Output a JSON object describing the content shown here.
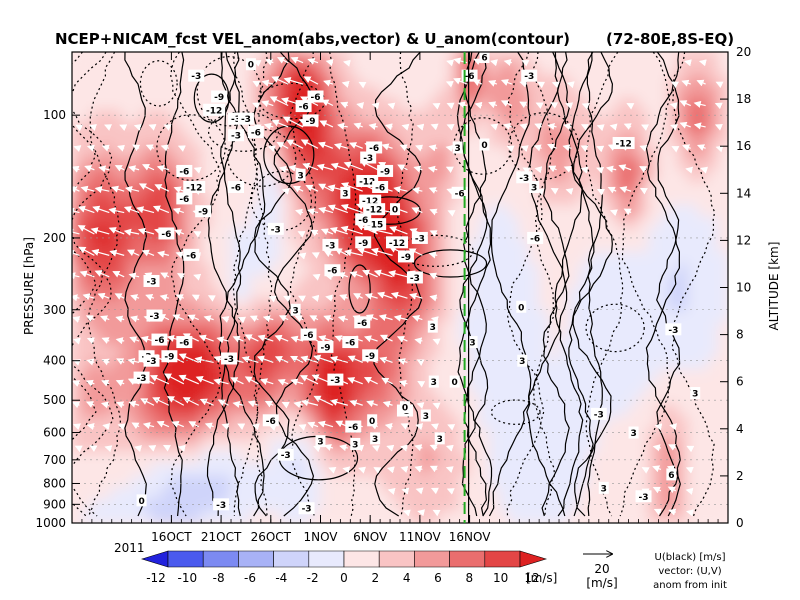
{
  "chart_data": {
    "type": "heatmap",
    "title": "NCEP+NICAM_fcst VEL_anom(abs,vector) & U_anom(contour)",
    "region": "(72-80E,8S-EQ)",
    "ylabel": "PRESSURE [hPa]",
    "y2label": "ALTITUDE [km]",
    "x_ticks": [
      "16OCT",
      "21OCT",
      "26OCT",
      "1NOV",
      "6NOV",
      "11NOV",
      "16NOV"
    ],
    "x_year": "2011",
    "x_range_days": [
      0,
      66
    ],
    "x_tick_days": [
      10,
      15,
      20,
      25,
      30,
      35,
      40
    ],
    "y_ticks_pressure": [
      100,
      200,
      300,
      400,
      500,
      600,
      700,
      800,
      900,
      1000
    ],
    "y_range_pressure": [
      70,
      1000
    ],
    "y_log_scale": true,
    "y2_ticks_altitude": [
      0,
      2,
      4,
      6,
      8,
      10,
      12,
      14,
      16,
      18,
      20
    ],
    "y2_range_km": [
      0,
      20
    ],
    "colorbar": {
      "levels": [
        -12,
        -10,
        -8,
        -6,
        -4,
        -2,
        0,
        2,
        4,
        6,
        8,
        10,
        12
      ],
      "unit": "[m/s]",
      "colors": [
        "#2222dd",
        "#4a5aee",
        "#7c8af2",
        "#a8b2f6",
        "#cfd4fa",
        "#e8eafd",
        "#fde6e6",
        "#f9c4c4",
        "#f29a9a",
        "#ea6e6e",
        "#e34646",
        "#dd2222"
      ]
    },
    "forecast_init_day": 39.5,
    "forecast_init_label": "init",
    "vector_reference": {
      "value": "20",
      "unit": "[m/s]"
    },
    "legend_text": [
      "U(black) [m/s]",
      "vector: (U,V)",
      "anom from init"
    ],
    "contour_labels": [
      {
        "t": "-3",
        "d": 12.5,
        "p": 80
      },
      {
        "t": "-9",
        "d": 14.8,
        "p": 90
      },
      {
        "t": "-12",
        "d": 14.3,
        "p": 97
      },
      {
        "t": "-3",
        "d": 16.5,
        "p": 102
      },
      {
        "t": "-6",
        "d": 11.3,
        "p": 137
      },
      {
        "t": "-6",
        "d": 11.3,
        "p": 160
      },
      {
        "t": "-12",
        "d": 12.3,
        "p": 150
      },
      {
        "t": "-9",
        "d": 13.2,
        "p": 172
      },
      {
        "t": "-6",
        "d": 12.0,
        "p": 220
      },
      {
        "t": "-6",
        "d": 9.5,
        "p": 195
      },
      {
        "t": "-3",
        "d": 8.0,
        "p": 255
      },
      {
        "t": "-3",
        "d": 8.3,
        "p": 310
      },
      {
        "t": "-6",
        "d": 8.8,
        "p": 355
      },
      {
        "t": "-6",
        "d": 11.3,
        "p": 360
      },
      {
        "t": "-9",
        "d": 9.8,
        "p": 390
      },
      {
        "t": "-3",
        "d": 7.5,
        "p": 390
      },
      {
        "t": "-3",
        "d": 15.8,
        "p": 395
      },
      {
        "t": "-6",
        "d": 23.8,
        "p": 345
      },
      {
        "t": "-9",
        "d": 25.5,
        "p": 370
      },
      {
        "t": "-6",
        "d": 26.2,
        "p": 240
      },
      {
        "t": "-6",
        "d": 28.0,
        "p": 360
      },
      {
        "t": "-6",
        "d": 29.2,
        "p": 322
      },
      {
        "t": "-3",
        "d": 26.5,
        "p": 445
      },
      {
        "t": "-3",
        "d": 20.5,
        "p": 190
      },
      {
        "t": "-6",
        "d": 16.5,
        "p": 150
      },
      {
        "t": "-6",
        "d": 18.5,
        "p": 110
      },
      {
        "t": "-3",
        "d": 16.5,
        "p": 112
      },
      {
        "t": "-3",
        "d": 17.5,
        "p": 102
      },
      {
        "t": "-6",
        "d": 23.3,
        "p": 95
      },
      {
        "t": "-9",
        "d": 24.0,
        "p": 103
      },
      {
        "t": "-6",
        "d": 24.5,
        "p": 90
      },
      {
        "t": "-6",
        "d": 30.4,
        "p": 120
      },
      {
        "t": "-3",
        "d": 29.8,
        "p": 127
      },
      {
        "t": "-12",
        "d": 29.7,
        "p": 145
      },
      {
        "t": "-6",
        "d": 31.0,
        "p": 150
      },
      {
        "t": "-9",
        "d": 31.5,
        "p": 137
      },
      {
        "t": "-12",
        "d": 30.0,
        "p": 162
      },
      {
        "t": "-12",
        "d": 30.4,
        "p": 170
      },
      {
        "t": "-15",
        "d": 30.5,
        "p": 185
      },
      {
        "t": "-9",
        "d": 29.3,
        "p": 205
      },
      {
        "t": "-12",
        "d": 32.7,
        "p": 205
      },
      {
        "t": "-9",
        "d": 33.6,
        "p": 222
      },
      {
        "t": "-3",
        "d": 35.0,
        "p": 200
      },
      {
        "t": "-3",
        "d": 34.5,
        "p": 250
      },
      {
        "t": "-3",
        "d": 26.0,
        "p": 208
      },
      {
        "t": "-6",
        "d": 39.0,
        "p": 155
      },
      {
        "t": "-6",
        "d": 46.6,
        "p": 200
      },
      {
        "t": "-3",
        "d": 45.5,
        "p": 142
      },
      {
        "t": "-12",
        "d": 55.5,
        "p": 117
      },
      {
        "t": "-6",
        "d": 40.0,
        "p": 80
      },
      {
        "t": "-3",
        "d": 46.0,
        "p": 80
      },
      {
        "t": "3",
        "d": 46.5,
        "p": 150
      },
      {
        "t": "3",
        "d": 38.8,
        "p": 120
      },
      {
        "t": "-3",
        "d": 15.0,
        "p": 900
      },
      {
        "t": "-3",
        "d": 21.5,
        "p": 680
      },
      {
        "t": "-3",
        "d": 23.6,
        "p": 920
      },
      {
        "t": "-6",
        "d": 20.0,
        "p": 560
      },
      {
        "t": "-6",
        "d": 28.3,
        "p": 580
      },
      {
        "t": "-3",
        "d": 8.0,
        "p": 400
      },
      {
        "t": "-3",
        "d": 7.0,
        "p": 440
      },
      {
        "t": "-3",
        "d": 53.0,
        "p": 540
      },
      {
        "t": "-3",
        "d": 60.5,
        "p": 335
      },
      {
        "t": "-3",
        "d": 57.5,
        "p": 860
      },
      {
        "t": "3",
        "d": 36.3,
        "p": 330
      },
      {
        "t": "3",
        "d": 36.4,
        "p": 450
      },
      {
        "t": "3",
        "d": 28.5,
        "p": 640
      },
      {
        "t": "3",
        "d": 27.5,
        "p": 155
      },
      {
        "t": "3",
        "d": 35.6,
        "p": 545
      },
      {
        "t": "3",
        "d": 25.0,
        "p": 630
      },
      {
        "t": "3",
        "d": 30.5,
        "p": 620
      },
      {
        "t": "3",
        "d": 45.3,
        "p": 400
      },
      {
        "t": "3",
        "d": 40.3,
        "p": 360
      },
      {
        "t": "3",
        "d": 56.5,
        "p": 600
      },
      {
        "t": "3",
        "d": 53.5,
        "p": 820
      },
      {
        "t": "6",
        "d": 60.3,
        "p": 760
      },
      {
        "t": "6",
        "d": 41.5,
        "p": 72
      },
      {
        "t": "3",
        "d": 62.7,
        "p": 480
      },
      {
        "t": "-3",
        "d": 33.5,
        "p": 530
      },
      {
        "t": "3",
        "d": 37.0,
        "p": 620
      },
      {
        "t": "3",
        "d": 22.5,
        "p": 300
      },
      {
        "t": "0",
        "d": 18.0,
        "p": 75
      },
      {
        "t": "0",
        "d": 33.5,
        "p": 520
      },
      {
        "t": "0",
        "d": 45.2,
        "p": 295
      },
      {
        "t": "0",
        "d": 38.5,
        "p": 450
      },
      {
        "t": "0",
        "d": 32.5,
        "p": 170
      },
      {
        "t": "0",
        "d": 7.0,
        "p": 880
      },
      {
        "t": "0",
        "d": 41.5,
        "p": 118
      },
      {
        "t": "0",
        "d": 30.2,
        "p": 560
      },
      {
        "t": "-9",
        "d": 30.0,
        "p": 388
      },
      {
        "t": "-6",
        "d": 29.3,
        "p": 180
      },
      {
        "t": "3",
        "d": 23.0,
        "p": 140
      }
    ]
  }
}
